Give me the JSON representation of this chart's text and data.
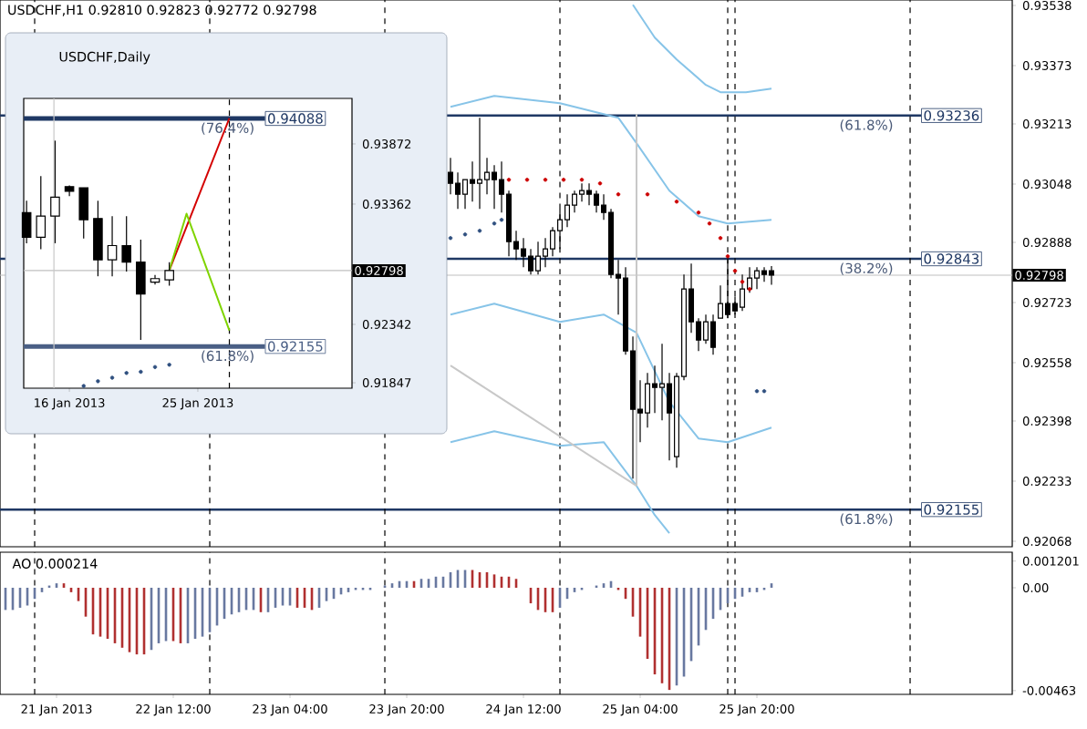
{
  "chart_data": [
    {
      "type": "candlestick",
      "title": "USDCHF,H1 0.92810 0.92823 0.92772 0.92798",
      "x": [
        "2013-01-24T02:00",
        "2013-01-24T03:00",
        "2013-01-24T04:00",
        "2013-01-24T05:00",
        "2013-01-24T06:00",
        "2013-01-24T07:00",
        "2013-01-24T08:00",
        "2013-01-24T09:00",
        "2013-01-24T10:00",
        "2013-01-24T11:00",
        "2013-01-24T12:00",
        "2013-01-24T13:00",
        "2013-01-24T14:00",
        "2013-01-24T15:00",
        "2013-01-24T16:00",
        "2013-01-24T17:00",
        "2013-01-24T18:00",
        "2013-01-24T19:00",
        "2013-01-24T20:00",
        "2013-01-24T21:00",
        "2013-01-24T22:00",
        "2013-01-24T23:00",
        "2013-01-25T00:00",
        "2013-01-25T01:00",
        "2013-01-25T02:00",
        "2013-01-25T03:00",
        "2013-01-25T04:00",
        "2013-01-25T05:00",
        "2013-01-25T06:00",
        "2013-01-25T07:00",
        "2013-01-25T08:00",
        "2013-01-25T09:00",
        "2013-01-25T10:00",
        "2013-01-25T11:00",
        "2013-01-25T12:00",
        "2013-01-25T13:00",
        "2013-01-25T14:00",
        "2013-01-25T15:00",
        "2013-01-25T16:00",
        "2013-01-25T17:00",
        "2013-01-25T18:00",
        "2013-01-25T19:00",
        "2013-01-25T20:00",
        "2013-01-25T21:00",
        "2013-01-25T22:00"
      ],
      "ohlc": [
        [
          0.9308,
          0.9312,
          0.9302,
          0.9305
        ],
        [
          0.9305,
          0.9308,
          0.9298,
          0.9302
        ],
        [
          0.9302,
          0.9306,
          0.9298,
          0.9306
        ],
        [
          0.9306,
          0.9311,
          0.93,
          0.9305
        ],
        [
          0.9305,
          0.9323,
          0.9298,
          0.9306
        ],
        [
          0.9306,
          0.9312,
          0.9302,
          0.9308
        ],
        [
          0.9308,
          0.931,
          0.9298,
          0.9306
        ],
        [
          0.9306,
          0.9311,
          0.9297,
          0.9302
        ],
        [
          0.9302,
          0.9303,
          0.9285,
          0.9289
        ],
        [
          0.9289,
          0.9292,
          0.9284,
          0.9287
        ],
        [
          0.9287,
          0.929,
          0.9282,
          0.9285
        ],
        [
          0.9285,
          0.9287,
          0.928,
          0.9281
        ],
        [
          0.9281,
          0.9289,
          0.928,
          0.9285
        ],
        [
          0.9285,
          0.929,
          0.9282,
          0.9287
        ],
        [
          0.9287,
          0.9293,
          0.9285,
          0.9292
        ],
        [
          0.9292,
          0.9298,
          0.9287,
          0.9295
        ],
        [
          0.9295,
          0.9302,
          0.9293,
          0.9299
        ],
        [
          0.9299,
          0.9303,
          0.9297,
          0.9302
        ],
        [
          0.9302,
          0.9305,
          0.93,
          0.9303
        ],
        [
          0.9303,
          0.9305,
          0.9299,
          0.9302
        ],
        [
          0.9302,
          0.9303,
          0.9297,
          0.9299
        ],
        [
          0.9299,
          0.9302,
          0.9295,
          0.9297
        ],
        [
          0.9297,
          0.9298,
          0.9279,
          0.928
        ],
        [
          0.928,
          0.9284,
          0.9269,
          0.9279
        ],
        [
          0.9279,
          0.9282,
          0.9258,
          0.9259
        ],
        [
          0.9259,
          0.9263,
          0.9224,
          0.9243
        ],
        [
          0.9243,
          0.9251,
          0.9234,
          0.9242
        ],
        [
          0.9242,
          0.9253,
          0.9238,
          0.925
        ],
        [
          0.925,
          0.9255,
          0.9242,
          0.9249
        ],
        [
          0.9249,
          0.9261,
          0.924,
          0.925
        ],
        [
          0.925,
          0.9253,
          0.9229,
          0.9242
        ],
        [
          0.923,
          0.9253,
          0.9227,
          0.9252
        ],
        [
          0.9252,
          0.928,
          0.9251,
          0.9276
        ],
        [
          0.9276,
          0.9283,
          0.9264,
          0.9267
        ],
        [
          0.9267,
          0.9268,
          0.9259,
          0.9262
        ],
        [
          0.9262,
          0.9269,
          0.9261,
          0.9267
        ],
        [
          0.9267,
          0.9269,
          0.9258,
          0.926
        ],
        [
          0.9268,
          0.9277,
          0.9268,
          0.9272
        ],
        [
          0.9272,
          0.9284,
          0.9268,
          0.9269
        ],
        [
          0.9272,
          0.9274,
          0.9269,
          0.927
        ],
        [
          0.9271,
          0.928,
          0.927,
          0.9276
        ],
        [
          0.9276,
          0.9282,
          0.9275,
          0.9279
        ],
        [
          0.9279,
          0.9282,
          0.9276,
          0.9281
        ],
        [
          0.9281,
          0.9282,
          0.9278,
          0.928
        ],
        [
          0.9281,
          0.92823,
          0.92772,
          0.92798
        ]
      ],
      "xlim": [
        "2013-01-21T12:15",
        "2013-01-27T07:00"
      ],
      "ylim": [
        0.92053,
        0.93553
      ],
      "yticks": [
        0.93538,
        0.93373,
        0.93213,
        0.93048,
        0.92888,
        0.92723,
        0.92558,
        0.92398,
        0.92233,
        0.92068
      ],
      "tick_labels": "y",
      "series": [
        {
          "type": "line",
          "color": "#87c4e8",
          "x": [
            "2013-01-24T02:00",
            "2013-01-24T08:00",
            "2013-01-24T17:00",
            "2013-01-25T01:00",
            "2013-01-25T03:30",
            "2013-01-25T08:00",
            "2013-01-25T12:00",
            "2013-01-25T16:00",
            "2013-01-25T22:00"
          ],
          "values": [
            0.9326,
            0.9329,
            0.9327,
            0.9323,
            0.9316,
            0.9303,
            0.9296,
            0.9294,
            0.9295
          ]
        },
        {
          "type": "line",
          "color": "#87c4e8",
          "x": [
            "2013-01-24T02:00",
            "2013-01-24T08:00",
            "2013-01-24T17:00",
            "2013-01-24T23:00",
            "2013-01-25T03:30",
            "2013-01-25T08:00",
            "2013-01-25T12:00",
            "2013-01-25T16:00",
            "2013-01-25T22:00"
          ],
          "values": [
            0.9269,
            0.9272,
            0.9267,
            0.9269,
            0.9264,
            0.9245,
            0.9235,
            0.9234,
            0.9238
          ]
        },
        {
          "type": "line",
          "color": "#87c4e8",
          "x": [
            "2013-01-25T03:00",
            "2013-01-25T06:00",
            "2013-01-25T09:00",
            "2013-01-25T13:00",
            "2013-01-25T15:00",
            "2013-01-25T18:30",
            "2013-01-25T22:00"
          ],
          "values": [
            0.9354,
            0.9345,
            0.9339,
            0.9332,
            0.933,
            0.933,
            0.9331
          ]
        },
        {
          "type": "line",
          "color": "#87c4e8",
          "x": [
            "2013-01-24T02:00",
            "2013-01-24T08:00",
            "2013-01-24T17:00",
            "2013-01-24T23:00",
            "2013-01-25T03:30",
            "2013-01-25T06:00",
            "2013-01-25T08:00"
          ],
          "values": [
            0.9234,
            0.9237,
            0.9233,
            0.9234,
            0.9222,
            0.9214,
            0.9209
          ]
        },
        {
          "type": "line",
          "color": "#c8c8c8",
          "x": [
            "2013-01-24T02:00",
            "2013-01-25T03:30"
          ],
          "values": [
            0.9255,
            0.9222
          ]
        },
        {
          "type": "line",
          "color": "#c8c8c8",
          "x": [
            "2013-01-25T03:30",
            "2013-01-25T03:30"
          ],
          "values": [
            0.9222,
            0.9324
          ]
        },
        {
          "type": "scatter",
          "marker": "circle",
          "color": "#cc0000",
          "x": [
            "2013-01-24T10:00",
            "2013-01-24T12:30",
            "2013-01-24T15:00",
            "2013-01-24T17:30",
            "2013-01-24T20:00",
            "2013-01-24T22:30",
            "2013-01-25T01:00",
            "2013-01-25T05:00",
            "2013-01-25T09:00",
            "2013-01-25T12:00",
            "2013-01-25T13:30",
            "2013-01-25T15:00",
            "2013-01-25T16:00",
            "2013-01-25T17:00",
            "2013-01-25T18:00",
            "2013-01-25T19:00"
          ],
          "values": [
            0.9306,
            0.9306,
            0.9306,
            0.9306,
            0.9306,
            0.9305,
            0.9302,
            0.9302,
            0.93,
            0.9297,
            0.9294,
            0.929,
            0.9285,
            0.9281,
            0.9278,
            0.9276
          ]
        },
        {
          "type": "scatter",
          "marker": "circle",
          "color": "#2f4f7f",
          "x": [
            "2013-01-24T02:00",
            "2013-01-24T04:00",
            "2013-01-24T06:00",
            "2013-01-24T08:00",
            "2013-01-24T09:00",
            "2013-01-25T20:00",
            "2013-01-25T21:00"
          ],
          "values": [
            0.929,
            0.9291,
            0.9292,
            0.9294,
            0.9295,
            0.9248,
            0.9248
          ]
        }
      ],
      "ref_lines": [
        {
          "axis": "y",
          "value": 0.93236,
          "label": "0.93236",
          "color": "#1f3864"
        },
        {
          "axis": "y",
          "value": 0.92843,
          "label": "0.92843",
          "color": "#1f3864"
        },
        {
          "axis": "y",
          "value": 0.92155,
          "label": "0.92155",
          "color": "#1f3864"
        },
        {
          "axis": "y",
          "value": 0.92798,
          "label": "0.92798",
          "color": "#c0c0c0"
        },
        {
          "axis": "x",
          "value": "2013-01-21T17:00",
          "color": "#000000",
          "line_style": "dashed"
        },
        {
          "axis": "x",
          "value": "2013-01-22T17:00",
          "color": "#000000",
          "line_style": "dashed"
        },
        {
          "axis": "x",
          "value": "2013-01-23T17:00",
          "color": "#000000",
          "line_style": "dashed"
        },
        {
          "axis": "x",
          "value": "2013-01-24T17:00",
          "color": "#000000",
          "line_style": "dashed"
        },
        {
          "axis": "x",
          "value": "2013-01-25T16:00",
          "color": "#000000",
          "line_style": "dashed"
        },
        {
          "axis": "x",
          "value": "2013-01-25T17:00",
          "color": "#000000",
          "line_style": "dashed"
        },
        {
          "axis": "x",
          "value": "2013-01-26T17:00",
          "color": "#000000",
          "line_style": "dashed"
        }
      ],
      "annotations": [
        {
          "text": "(61.8%)",
          "x": "2013-01-26T11:00",
          "y": 0.93236
        },
        {
          "text": "(38.2%)",
          "x": "2013-01-26T11:00",
          "y": 0.92843
        },
        {
          "text": "(61.8%)",
          "x": "2013-01-26T11:00",
          "y": 0.92155
        }
      ]
    },
    {
      "type": "bar",
      "title": "AO 0.000214",
      "x": [
        "2013-01-21T13:00",
        "2013-01-21T14:00",
        "2013-01-21T15:00",
        "2013-01-21T16:00",
        "2013-01-21T17:00",
        "2013-01-21T18:00",
        "2013-01-21T19:00",
        "2013-01-21T20:00",
        "2013-01-21T21:00",
        "2013-01-21T22:00",
        "2013-01-21T23:00",
        "2013-01-22T00:00",
        "2013-01-22T01:00",
        "2013-01-22T02:00",
        "2013-01-22T03:00",
        "2013-01-22T04:00",
        "2013-01-22T05:00",
        "2013-01-22T06:00",
        "2013-01-22T07:00",
        "2013-01-22T08:00",
        "2013-01-22T09:00",
        "2013-01-22T10:00",
        "2013-01-22T11:00",
        "2013-01-22T12:00",
        "2013-01-22T13:00",
        "2013-01-22T14:00",
        "2013-01-22T15:00",
        "2013-01-22T16:00",
        "2013-01-22T17:00",
        "2013-01-22T18:00",
        "2013-01-22T19:00",
        "2013-01-22T20:00",
        "2013-01-22T21:00",
        "2013-01-22T22:00",
        "2013-01-22T23:00",
        "2013-01-23T00:00",
        "2013-01-23T01:00",
        "2013-01-23T02:00",
        "2013-01-23T03:00",
        "2013-01-23T04:00",
        "2013-01-23T05:00",
        "2013-01-23T06:00",
        "2013-01-23T07:00",
        "2013-01-23T08:00",
        "2013-01-23T09:00",
        "2013-01-23T10:00",
        "2013-01-23T11:00",
        "2013-01-23T12:00",
        "2013-01-23T13:00",
        "2013-01-23T14:00",
        "2013-01-23T15:00",
        "2013-01-23T16:00",
        "2013-01-23T17:00",
        "2013-01-23T18:00",
        "2013-01-23T19:00",
        "2013-01-23T20:00",
        "2013-01-23T21:00",
        "2013-01-23T22:00",
        "2013-01-23T23:00",
        "2013-01-24T00:00",
        "2013-01-24T01:00",
        "2013-01-24T02:00",
        "2013-01-24T03:00",
        "2013-01-24T04:00",
        "2013-01-24T05:00",
        "2013-01-24T06:00",
        "2013-01-24T07:00",
        "2013-01-24T08:00",
        "2013-01-24T09:00",
        "2013-01-24T10:00",
        "2013-01-24T11:00",
        "2013-01-24T12:00",
        "2013-01-24T13:00",
        "2013-01-24T14:00",
        "2013-01-24T15:00",
        "2013-01-24T16:00",
        "2013-01-24T17:00",
        "2013-01-24T18:00",
        "2013-01-24T19:00",
        "2013-01-24T20:00",
        "2013-01-24T21:00",
        "2013-01-24T22:00",
        "2013-01-24T23:00",
        "2013-01-25T00:00",
        "2013-01-25T01:00",
        "2013-01-25T02:00",
        "2013-01-25T03:00",
        "2013-01-25T04:00",
        "2013-01-25T05:00",
        "2013-01-25T06:00",
        "2013-01-25T07:00",
        "2013-01-25T08:00",
        "2013-01-25T09:00",
        "2013-01-25T10:00",
        "2013-01-25T11:00",
        "2013-01-25T12:00",
        "2013-01-25T13:00",
        "2013-01-25T14:00",
        "2013-01-25T15:00",
        "2013-01-25T16:00",
        "2013-01-25T17:00",
        "2013-01-25T18:00",
        "2013-01-25T19:00",
        "2013-01-25T20:00",
        "2013-01-25T21:00",
        "2013-01-25T22:00"
      ],
      "values": [
        -0.001,
        -0.001,
        -0.0009,
        -0.0008,
        -0.0005,
        -0.0002,
        0.0001,
        0.0002,
        0.0002,
        -0.0002,
        -0.0006,
        -0.0013,
        -0.0021,
        -0.0022,
        -0.0023,
        -0.0025,
        -0.0027,
        -0.0029,
        -0.003,
        -0.003,
        -0.0028,
        -0.0025,
        -0.0024,
        -0.0024,
        -0.0025,
        -0.0025,
        -0.0023,
        -0.0022,
        -0.002,
        -0.0017,
        -0.0014,
        -0.0012,
        -0.0011,
        -0.001,
        -0.001,
        -0.0011,
        -0.0011,
        -0.0009,
        -0.0008,
        -0.0008,
        -0.0009,
        -0.0009,
        -0.001,
        -0.0009,
        -0.0006,
        -0.0005,
        -0.0003,
        -0.0002,
        -0.0001,
        -0.0001,
        -0.0001,
        0,
        0.0001,
        0.0002,
        0.0003,
        0.0003,
        0.0003,
        0.0004,
        0.0004,
        0.0005,
        0.0005,
        0.0007,
        0.0008,
        0.0008,
        0.0008,
        0.0007,
        0.0007,
        0.0006,
        0.0005,
        0.0005,
        0.0004,
        0,
        -0.0007,
        -0.001,
        -0.0011,
        -0.0011,
        -0.0009,
        -0.0005,
        -0.0002,
        -0.0001,
        0,
        0.0001,
        0.0002,
        0.0003,
        -0.0001,
        -0.0005,
        -0.0013,
        -0.0022,
        -0.0032,
        -0.0039,
        -0.0043,
        -0.0046,
        -0.0044,
        -0.004,
        -0.0033,
        -0.0026,
        -0.0019,
        -0.0014,
        -0.001,
        -0.0007,
        -0.0005,
        -0.0004,
        -0.0002,
        -0.0002,
        -0.0001,
        0.0002
      ],
      "colors": [
        "#6878a0",
        "#6878a0",
        "#6878a0",
        "#6878a0",
        "#6878a0",
        "#6878a0",
        "#6878a0",
        "#6878a0",
        "#b03030",
        "#b03030",
        "#b03030",
        "#b03030",
        "#b03030",
        "#b03030",
        "#b03030",
        "#b03030",
        "#b03030",
        "#b03030",
        "#b03030",
        "#b03030",
        "#6878a0",
        "#6878a0",
        "#6878a0",
        "#b03030",
        "#b03030",
        "#6878a0",
        "#6878a0",
        "#6878a0",
        "#6878a0",
        "#6878a0",
        "#6878a0",
        "#6878a0",
        "#6878a0",
        "#6878a0",
        "#6878a0",
        "#b03030",
        "#6878a0",
        "#6878a0",
        "#6878a0",
        "#6878a0",
        "#b03030",
        "#b03030",
        "#b03030",
        "#6878a0",
        "#6878a0",
        "#6878a0",
        "#6878a0",
        "#6878a0",
        "#6878a0",
        "#6878a0",
        "#6878a0",
        "#6878a0",
        "#6878a0",
        "#6878a0",
        "#6878a0",
        "#6878a0",
        "#b03030",
        "#6878a0",
        "#6878a0",
        "#6878a0",
        "#6878a0",
        "#6878a0",
        "#6878a0",
        "#6878a0",
        "#b03030",
        "#b03030",
        "#b03030",
        "#b03030",
        "#b03030",
        "#b03030",
        "#b03030",
        "#b03030",
        "#b03030",
        "#b03030",
        "#b03030",
        "#b03030",
        "#6878a0",
        "#6878a0",
        "#6878a0",
        "#6878a0",
        "#6878a0",
        "#6878a0",
        "#6878a0",
        "#6878a0",
        "#b03030",
        "#b03030",
        "#b03030",
        "#b03030",
        "#b03030",
        "#b03030",
        "#b03030",
        "#b03030",
        "#6878a0",
        "#6878a0",
        "#6878a0",
        "#6878a0",
        "#6878a0",
        "#6878a0",
        "#6878a0",
        "#6878a0",
        "#6878a0",
        "#6878a0",
        "#6878a0",
        "#6878a0",
        "#6878a0",
        "#6878a0"
      ],
      "xlim": [
        "2013-01-21T12:15",
        "2013-01-27T07:00"
      ],
      "ylim": [
        -0.0048,
        0.0016
      ],
      "yticks": [
        0.001201,
        {
          "value": 0,
          "label": "0.00"
        },
        -0.00463
      ],
      "xticks": [
        {
          "value": "2013-01-21T20:00",
          "label": "21 Jan 2013"
        },
        {
          "value": "2013-01-22T12:00",
          "label": "22 Jan 12:00"
        },
        {
          "value": "2013-01-23T04:00",
          "label": "23 Jan 04:00"
        },
        {
          "value": "2013-01-23T20:00",
          "label": "23 Jan 20:00"
        },
        {
          "value": "2013-01-24T12:00",
          "label": "24 Jan 12:00"
        },
        {
          "value": "2013-01-25T04:00",
          "label": "25 Jan 04:00"
        },
        {
          "value": "2013-01-25T20:00",
          "label": "25 Jan 20:00"
        }
      ],
      "ref_lines": [
        {
          "axis": "x",
          "value": "2013-01-21T17:00",
          "color": "#000000",
          "line_style": "dashed"
        },
        {
          "axis": "x",
          "value": "2013-01-22T17:00",
          "color": "#000000",
          "line_style": "dashed"
        },
        {
          "axis": "x",
          "value": "2013-01-23T17:00",
          "color": "#000000",
          "line_style": "dashed"
        },
        {
          "axis": "x",
          "value": "2013-01-24T17:00",
          "color": "#000000",
          "line_style": "dashed"
        },
        {
          "axis": "x",
          "value": "2013-01-25T16:00",
          "color": "#000000",
          "line_style": "dashed"
        },
        {
          "axis": "x",
          "value": "2013-01-25T17:00",
          "color": "#000000",
          "line_style": "dashed"
        },
        {
          "axis": "x",
          "value": "2013-01-26T17:00",
          "color": "#000000",
          "line_style": "dashed"
        }
      ]
    },
    {
      "type": "candlestick",
      "title": "USDCHF,Daily",
      "x": [
        "2013-01-13",
        "2013-01-14",
        "2013-01-15",
        "2013-01-16",
        "2013-01-17",
        "2013-01-18",
        "2013-01-19",
        "2013-01-20",
        "2013-01-21",
        "2013-01-22",
        "2013-01-23"
      ],
      "ohlc": [
        [
          0.9329,
          0.9339,
          0.9303,
          0.9308
        ],
        [
          0.9308,
          0.936,
          0.9298,
          0.9326
        ],
        [
          0.9326,
          0.939,
          0.9303,
          0.9342
        ],
        [
          0.9351,
          0.9352,
          0.9343,
          0.9347
        ],
        [
          0.935,
          0.935,
          0.9307,
          0.9323
        ],
        [
          0.9324,
          0.9339,
          0.9275,
          0.9289
        ],
        [
          0.9289,
          0.9326,
          0.9275,
          0.9301
        ],
        [
          0.9301,
          0.9326,
          0.9279,
          0.9287
        ],
        [
          0.9287,
          0.9306,
          0.9221,
          0.926
        ],
        [
          0.927,
          0.9276,
          0.9268,
          0.9273
        ],
        [
          0.9272,
          0.9287,
          0.9267,
          0.92798
        ]
      ],
      "xlim": [
        "2013-01-12T19:12",
        "2013-02-04T19:12"
      ],
      "ylim": [
        0.91801,
        0.94258
      ],
      "yticks": [
        0.93872,
        0.93362,
        0.92342,
        0.91847
      ],
      "xticks": [
        {
          "value": "2013-01-16",
          "label": "16 Jan 2013"
        },
        {
          "value": "2013-01-25",
          "label": "25 Jan 2013"
        }
      ],
      "series": [
        {
          "type": "line",
          "color": "#d40000",
          "x": [
            "2013-01-23",
            "2013-01-27T05:00"
          ],
          "values": [
            0.928,
            0.9409
          ]
        },
        {
          "type": "line",
          "color": "#7fd400",
          "x": [
            "2013-01-23",
            "2013-01-24T05:00",
            "2013-01-27T05:00"
          ],
          "values": [
            0.928,
            0.9328,
            0.9229
          ]
        },
        {
          "type": "scatter",
          "marker": "circle",
          "color": "#2f4f7f",
          "x": [
            "2013-01-17",
            "2013-01-18",
            "2013-01-19",
            "2013-01-20",
            "2013-01-21",
            "2013-01-22",
            "2013-01-23"
          ],
          "values": [
            0.9182,
            0.9186,
            0.9189,
            0.9193,
            0.9194,
            0.9198,
            0.92
          ]
        }
      ],
      "ref_lines": [
        {
          "axis": "y",
          "value": 0.94088,
          "label": "0.94088",
          "color": "#1f3864"
        },
        {
          "axis": "y",
          "value": 0.92155,
          "label": "0.92155",
          "color": "#4a5f85"
        },
        {
          "axis": "y",
          "value": 0.92798,
          "label": "0.92798",
          "color": "#c0c0c0"
        },
        {
          "axis": "x",
          "value": "2013-01-27T05:00",
          "color": "#000000",
          "line_style": "dashed"
        },
        {
          "axis": "x",
          "value": "2013-01-14T22:00",
          "color": "#c8c8c8",
          "line_style": "solid"
        }
      ],
      "annotations": [
        {
          "text": "(76.4%)",
          "x": "2013-01-27T02:00",
          "y": 0.94088
        },
        {
          "text": "(61.8%)",
          "x": "2013-01-27T02:00",
          "y": 0.92155
        }
      ]
    }
  ]
}
